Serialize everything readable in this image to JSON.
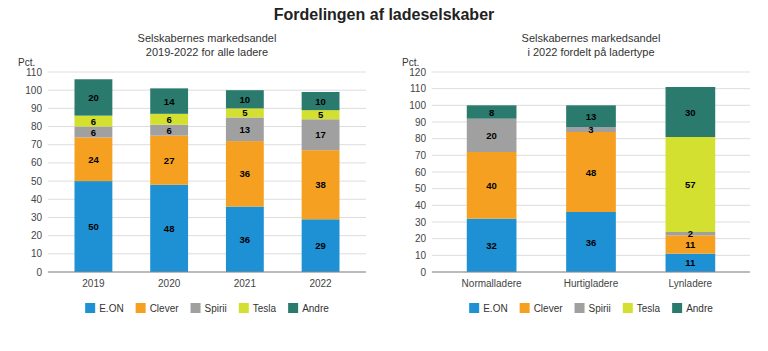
{
  "chart_data": [
    {
      "type": "bar",
      "stacked": true,
      "data_labels": true,
      "grid": true,
      "legend": "bottom",
      "title": "Fordelingen af ladeselskaber",
      "subtitle": "Selskabernes markedsandel\n2019-2022 for alle ladere",
      "ylabel": "Pct.",
      "categories": [
        "2019",
        "2020",
        "2021",
        "2022"
      ],
      "series": [
        {
          "name": "E.ON",
          "color": "#1e90d4",
          "values": [
            50,
            48,
            36,
            29
          ]
        },
        {
          "name": "Clever",
          "color": "#f5a020",
          "values": [
            24,
            27,
            36,
            38
          ]
        },
        {
          "name": "Spirii",
          "color": "#a0a0a0",
          "values": [
            6,
            6,
            13,
            17
          ]
        },
        {
          "name": "Tesla",
          "color": "#d4e030",
          "values": [
            6,
            6,
            5,
            5
          ]
        },
        {
          "name": "Andre",
          "color": "#2a7a6e",
          "values": [
            20,
            14,
            10,
            10
          ]
        }
      ],
      "ylim": [
        0,
        110
      ],
      "yticks": [
        0,
        10,
        20,
        30,
        40,
        50,
        60,
        70,
        80,
        90,
        100,
        110
      ]
    },
    {
      "type": "bar",
      "stacked": true,
      "data_labels": true,
      "grid": true,
      "legend": "bottom",
      "subtitle": "Selskabernes markedsandel\ni 2022 fordelt på ladertype",
      "ylabel": "Pct.",
      "categories": [
        "Normalladere",
        "Hurtigladere",
        "Lynladere"
      ],
      "series": [
        {
          "name": "E.ON",
          "color": "#1e90d4",
          "values": [
            32,
            36,
            11
          ]
        },
        {
          "name": "Clever",
          "color": "#f5a020",
          "values": [
            40,
            48,
            11
          ]
        },
        {
          "name": "Spirii",
          "color": "#a0a0a0",
          "values": [
            20,
            3,
            2
          ]
        },
        {
          "name": "Tesla",
          "color": "#d4e030",
          "values": [
            0,
            0,
            57
          ]
        },
        {
          "name": "Andre",
          "color": "#2a7a6e",
          "values": [
            8,
            13,
            30
          ]
        }
      ],
      "ylim": [
        0,
        120
      ],
      "yticks": [
        0,
        10,
        20,
        30,
        40,
        50,
        60,
        70,
        80,
        90,
        100,
        110,
        120
      ]
    }
  ]
}
